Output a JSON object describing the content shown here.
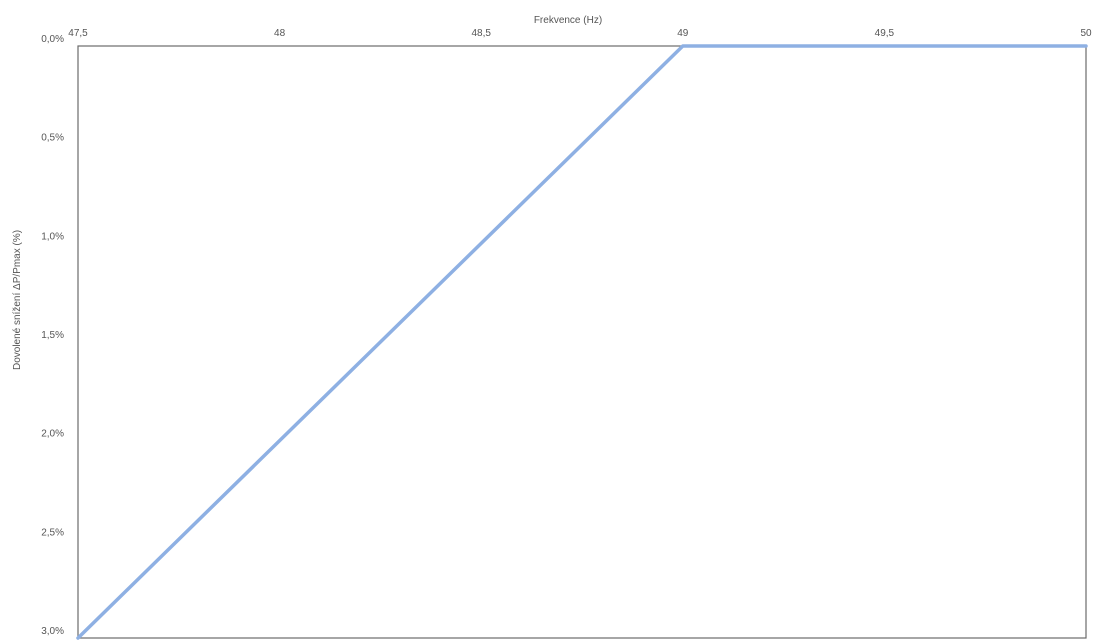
{
  "chart_data": {
    "type": "line",
    "xlabel": "Frekvence (Hz)",
    "ylabel": "Dovolené snížení ΔP/Pmax (%)",
    "xlim": [
      47.5,
      50
    ],
    "ylim": [
      0,
      3
    ],
    "y_inverted": true,
    "x_axis_position": "top",
    "grid": false,
    "x_ticks": [
      47.5,
      48,
      48.5,
      49,
      49.5,
      50
    ],
    "x_tick_labels": [
      "47,5",
      "48",
      "48,5",
      "49",
      "49,5",
      "50"
    ],
    "y_ticks": [
      0,
      0.5,
      1,
      1.5,
      2,
      2.5,
      3
    ],
    "y_tick_labels": [
      "0,0%",
      "0,5%",
      "1,0%",
      "1,5%",
      "2,0%",
      "2,5%",
      "3,0%"
    ],
    "series": [
      {
        "x": [
          47.5,
          49,
          50
        ],
        "y": [
          3,
          0,
          0
        ],
        "color": "#8eb0e3"
      }
    ],
    "plot_border_color": "#6b6b6b"
  }
}
